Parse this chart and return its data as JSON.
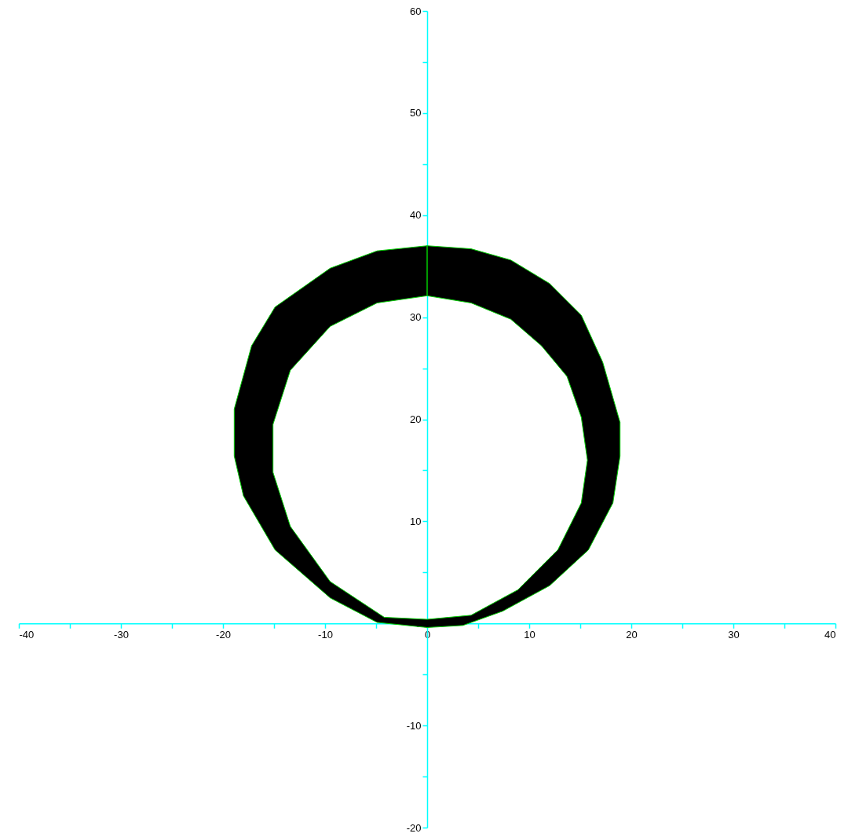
{
  "chart_data": {
    "type": "area",
    "series": [
      {
        "color": "#000000",
        "x": [
          0,
          4.3,
          8.2,
          12,
          15.1,
          17.2,
          18.9,
          18.9,
          18.2,
          15.8,
          12,
          7.4,
          3.5,
          0,
          -4.9,
          -9.5,
          -14.9,
          -18,
          -18.9,
          -18.9,
          -17.2,
          -14.9,
          -9.5,
          -4.9,
          0,
          0,
          -4.9,
          -9.5,
          -13.4,
          -15.1,
          -15.1,
          -13.4,
          -9.5,
          -4.2,
          0,
          4.3,
          8.9,
          12.8,
          15.1,
          15.7,
          15.1,
          13.7,
          11.2,
          8.2,
          4.3,
          0,
          0
        ],
        "values": [
          37,
          36.7,
          35.6,
          33.3,
          30.2,
          25.6,
          19.7,
          16.4,
          11.8,
          7.2,
          3.7,
          1.2,
          -0.2,
          -0.4,
          0.1,
          2.5,
          7.2,
          12.5,
          16.4,
          21,
          27.2,
          31,
          34.8,
          36.5,
          37,
          32.1,
          31.4,
          29.1,
          24.8,
          19.5,
          14.8,
          9.5,
          4.1,
          0.6,
          0.4,
          0.8,
          3.3,
          7.2,
          11.8,
          16,
          20.2,
          24.2,
          27.2,
          29.8,
          31.4,
          32.1,
          37
        ]
      }
    ],
    "xlim": [
      -40,
      40
    ],
    "ylim": [
      -20,
      60
    ],
    "xticks": [
      -40,
      {
        "value": -35,
        "label": null
      },
      -30,
      {
        "value": -25,
        "label": null
      },
      -20,
      {
        "value": -15,
        "label": null
      },
      -10,
      {
        "value": -5,
        "label": null
      },
      0,
      {
        "value": 5,
        "label": null
      },
      10,
      {
        "value": 15,
        "label": null
      },
      20,
      {
        "value": 25,
        "label": null
      },
      30,
      {
        "value": 35,
        "label": null
      },
      40
    ],
    "yticks": [
      -20,
      {
        "value": -15,
        "label": null
      },
      -10,
      {
        "value": -5,
        "label": null
      },
      0,
      {
        "value": 5,
        "label": null
      },
      10,
      {
        "value": 15,
        "label": null
      },
      20,
      {
        "value": 25,
        "label": null
      },
      30,
      {
        "value": 35,
        "label": null
      },
      40,
      {
        "value": 45,
        "label": null
      },
      50,
      {
        "value": 55,
        "label": null
      },
      60
    ],
    "grid": false
  }
}
